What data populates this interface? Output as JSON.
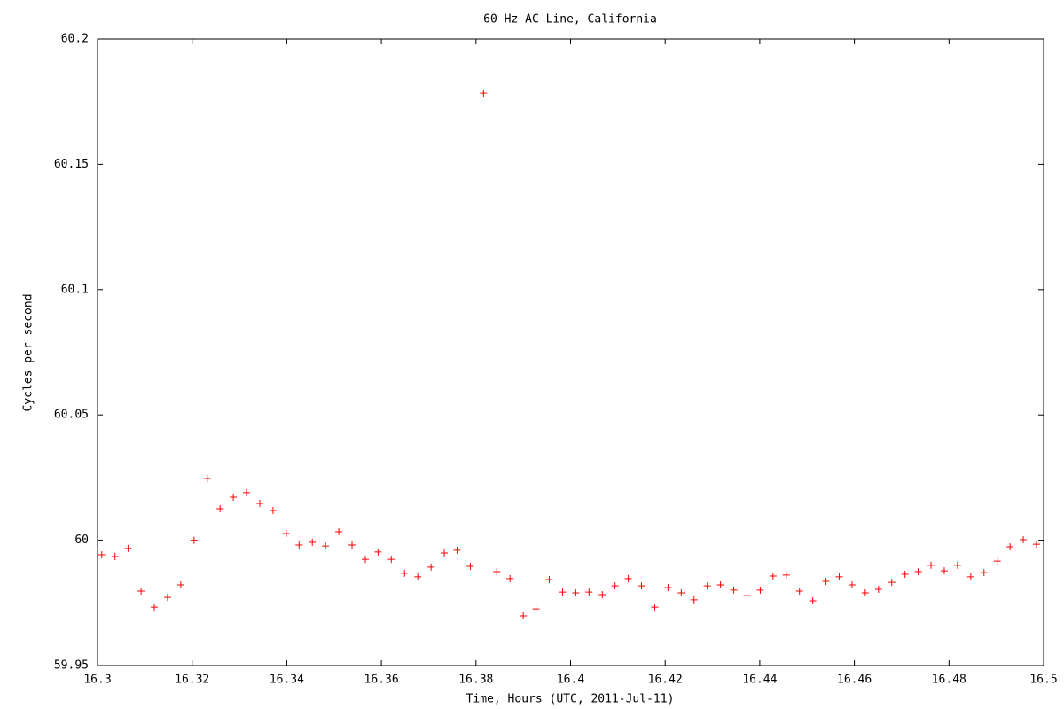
{
  "chart_data": {
    "type": "scatter",
    "title": "60 Hz AC Line, California",
    "x_label": "Time, Hours (UTC, 2011-Jul-11)",
    "y_label": "Cycles per second",
    "xlim": [
      16.3,
      16.5
    ],
    "ylim": [
      59.95,
      60.2
    ],
    "xticks": [
      16.3,
      16.32,
      16.34,
      16.36,
      16.38,
      16.4,
      16.42,
      16.44,
      16.46,
      16.48,
      16.5
    ],
    "yticks": [
      59.95,
      60,
      60.05,
      60.1,
      60.15,
      60.2
    ],
    "grid": false,
    "series": [
      {
        "color": "#ff0000",
        "x": [
          16.3009,
          16.3037,
          16.3065,
          16.3092,
          16.312,
          16.3148,
          16.3176,
          16.3204,
          16.3232,
          16.3259,
          16.3287,
          16.3315,
          16.3343,
          16.3371,
          16.3399,
          16.3426,
          16.3454,
          16.3482,
          16.351,
          16.3538,
          16.3566,
          16.3593,
          16.3621,
          16.3649,
          16.3677,
          16.3705,
          16.3733,
          16.376,
          16.3788,
          16.3816,
          16.3844,
          16.3872,
          16.39,
          16.3927,
          16.3955,
          16.3983,
          16.4011,
          16.4039,
          16.4067,
          16.4094,
          16.4122,
          16.415,
          16.4178,
          16.4206,
          16.4234,
          16.4261,
          16.4289,
          16.4317,
          16.4345,
          16.4373,
          16.4401,
          16.4428,
          16.4456,
          16.4484,
          16.4512,
          16.454,
          16.4568,
          16.4595,
          16.4623,
          16.4651,
          16.4679,
          16.4707,
          16.4735,
          16.4762,
          16.479,
          16.4818,
          16.4846,
          16.4874,
          16.4902,
          16.4929,
          16.4957,
          16.4985
        ],
        "values": [
          59.9942,
          59.9935,
          59.9967,
          59.9797,
          59.9733,
          59.9772,
          59.9822,
          60.0,
          60.0246,
          60.0126,
          60.0172,
          60.019,
          60.0147,
          60.0119,
          60.0027,
          59.9981,
          59.9992,
          59.9977,
          60.0034,
          59.9981,
          59.9924,
          59.9953,
          59.9924,
          59.9868,
          59.9854,
          59.9893,
          59.9949,
          59.996,
          59.9896,
          60.1784,
          59.9875,
          59.9847,
          59.9698,
          59.9726,
          59.9843,
          59.9793,
          59.979,
          59.9793,
          59.9783,
          59.9818,
          59.9847,
          59.9818,
          59.9733,
          59.9811,
          59.979,
          59.9762,
          59.9818,
          59.9822,
          59.9801,
          59.9779,
          59.9801,
          59.9857,
          59.9861,
          59.9797,
          59.9758,
          59.9836,
          59.9854,
          59.9822,
          59.979,
          59.9804,
          59.9832,
          59.9864,
          59.9875,
          59.99,
          59.9878,
          59.99,
          59.9854,
          59.9871,
          59.9917,
          59.9974,
          60.0002,
          59.9984
        ]
      }
    ]
  }
}
